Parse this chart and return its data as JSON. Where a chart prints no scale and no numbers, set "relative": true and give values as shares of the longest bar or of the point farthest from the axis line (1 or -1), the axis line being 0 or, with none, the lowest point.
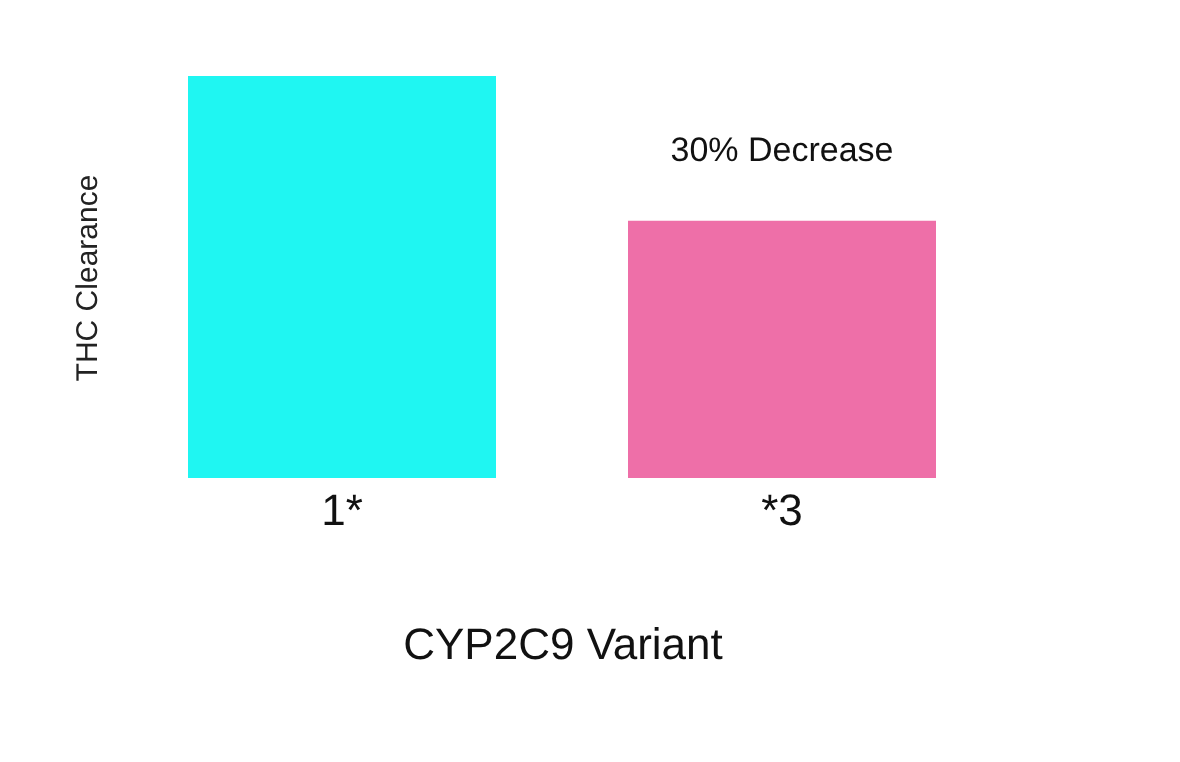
{
  "chart_data": {
    "type": "bar",
    "relative": true,
    "xlabel": "CYP2C9 Variant",
    "ylabel": "THC Clearance",
    "categories": [
      "1*",
      "*3"
    ],
    "values": [
      1,
      0.64
    ],
    "colors": [
      "#1ff6f2",
      "#ee6fa8"
    ],
    "annotations": [
      {
        "text": "30% Decrease",
        "x": "*3",
        "y": 0.64
      }
    ]
  }
}
